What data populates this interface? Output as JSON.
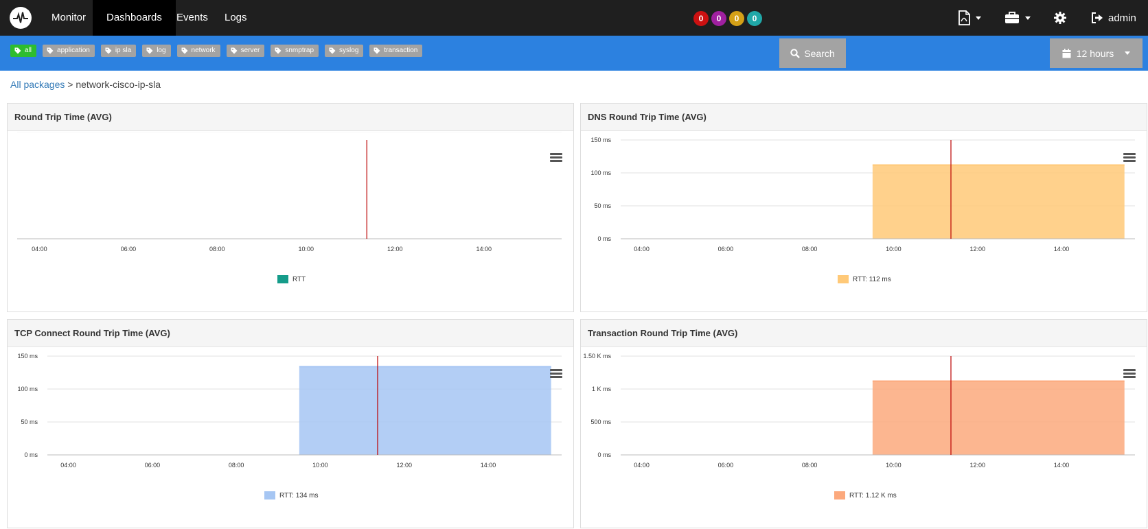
{
  "nav": {
    "items": [
      "Monitor",
      "Dashboards",
      "Events",
      "Logs"
    ],
    "active": "Dashboards",
    "badges": [
      {
        "value": "0",
        "color": "#cc1111"
      },
      {
        "value": "0",
        "color": "#a020a0"
      },
      {
        "value": "0",
        "color": "#d4a017"
      },
      {
        "value": "0",
        "color": "#20a8a8"
      }
    ],
    "user": "admin"
  },
  "filters": {
    "tags": [
      "all",
      "application",
      "ip sla",
      "log",
      "network",
      "server",
      "snmptrap",
      "syslog",
      "transaction"
    ],
    "active_tag": "all",
    "search_label": "Search",
    "time_label": "12 hours"
  },
  "breadcrumb": {
    "root": "All packages",
    "separator": ">",
    "current": "network-cisco-ip-sla"
  },
  "panels": [
    {
      "title": "Round Trip Time (AVG)",
      "legend": "RTT",
      "color": "#159c8a"
    },
    {
      "title": "DNS Round Trip Time (AVG)",
      "legend": "RTT: 112 ms",
      "color": "#ffc978"
    },
    {
      "title": "TCP Connect Round Trip Time (AVG)",
      "legend": "RTT: 134 ms",
      "color": "#a6c6f3"
    },
    {
      "title": "Transaction Round Trip Time (AVG)",
      "legend": "RTT: 1.12 K ms",
      "color": "#fca97d"
    }
  ],
  "chart_data": [
    {
      "type": "area",
      "title": "Round Trip Time (AVG)",
      "x_ticks": [
        "04:00",
        "06:00",
        "08:00",
        "10:00",
        "12:00",
        "14:00"
      ],
      "y_ticks": [],
      "series": [
        {
          "name": "RTT",
          "x": [],
          "y": []
        }
      ],
      "now_marker": "11:22"
    },
    {
      "type": "area",
      "title": "DNS Round Trip Time (AVG)",
      "x_ticks": [
        "04:00",
        "06:00",
        "08:00",
        "10:00",
        "12:00",
        "14:00"
      ],
      "y_ticks": [
        "0 ms",
        "50 ms",
        "100 ms",
        "150 ms"
      ],
      "ylim": [
        0,
        150
      ],
      "series": [
        {
          "name": "RTT: 112 ms",
          "x": [
            "09:30",
            "15:30"
          ],
          "y": [
            112,
            112
          ]
        }
      ],
      "now_marker": "11:22"
    },
    {
      "type": "area",
      "title": "TCP Connect Round Trip Time (AVG)",
      "x_ticks": [
        "04:00",
        "06:00",
        "08:00",
        "10:00",
        "12:00",
        "14:00"
      ],
      "y_ticks": [
        "0 ms",
        "50 ms",
        "100 ms",
        "150 ms"
      ],
      "ylim": [
        0,
        150
      ],
      "series": [
        {
          "name": "RTT: 134 ms",
          "x": [
            "09:30",
            "15:30"
          ],
          "y": [
            134,
            134
          ]
        }
      ],
      "now_marker": "11:22"
    },
    {
      "type": "area",
      "title": "Transaction Round Trip Time (AVG)",
      "x_ticks": [
        "04:00",
        "06:00",
        "08:00",
        "10:00",
        "12:00",
        "14:00"
      ],
      "y_ticks": [
        "0 ms",
        "500 ms",
        "1 K ms",
        "1.50 K ms"
      ],
      "ylim": [
        0,
        1500
      ],
      "series": [
        {
          "name": "RTT: 1.12 K ms",
          "x": [
            "09:30",
            "15:30"
          ],
          "y": [
            1120,
            1120
          ]
        }
      ],
      "now_marker": "11:22"
    }
  ]
}
